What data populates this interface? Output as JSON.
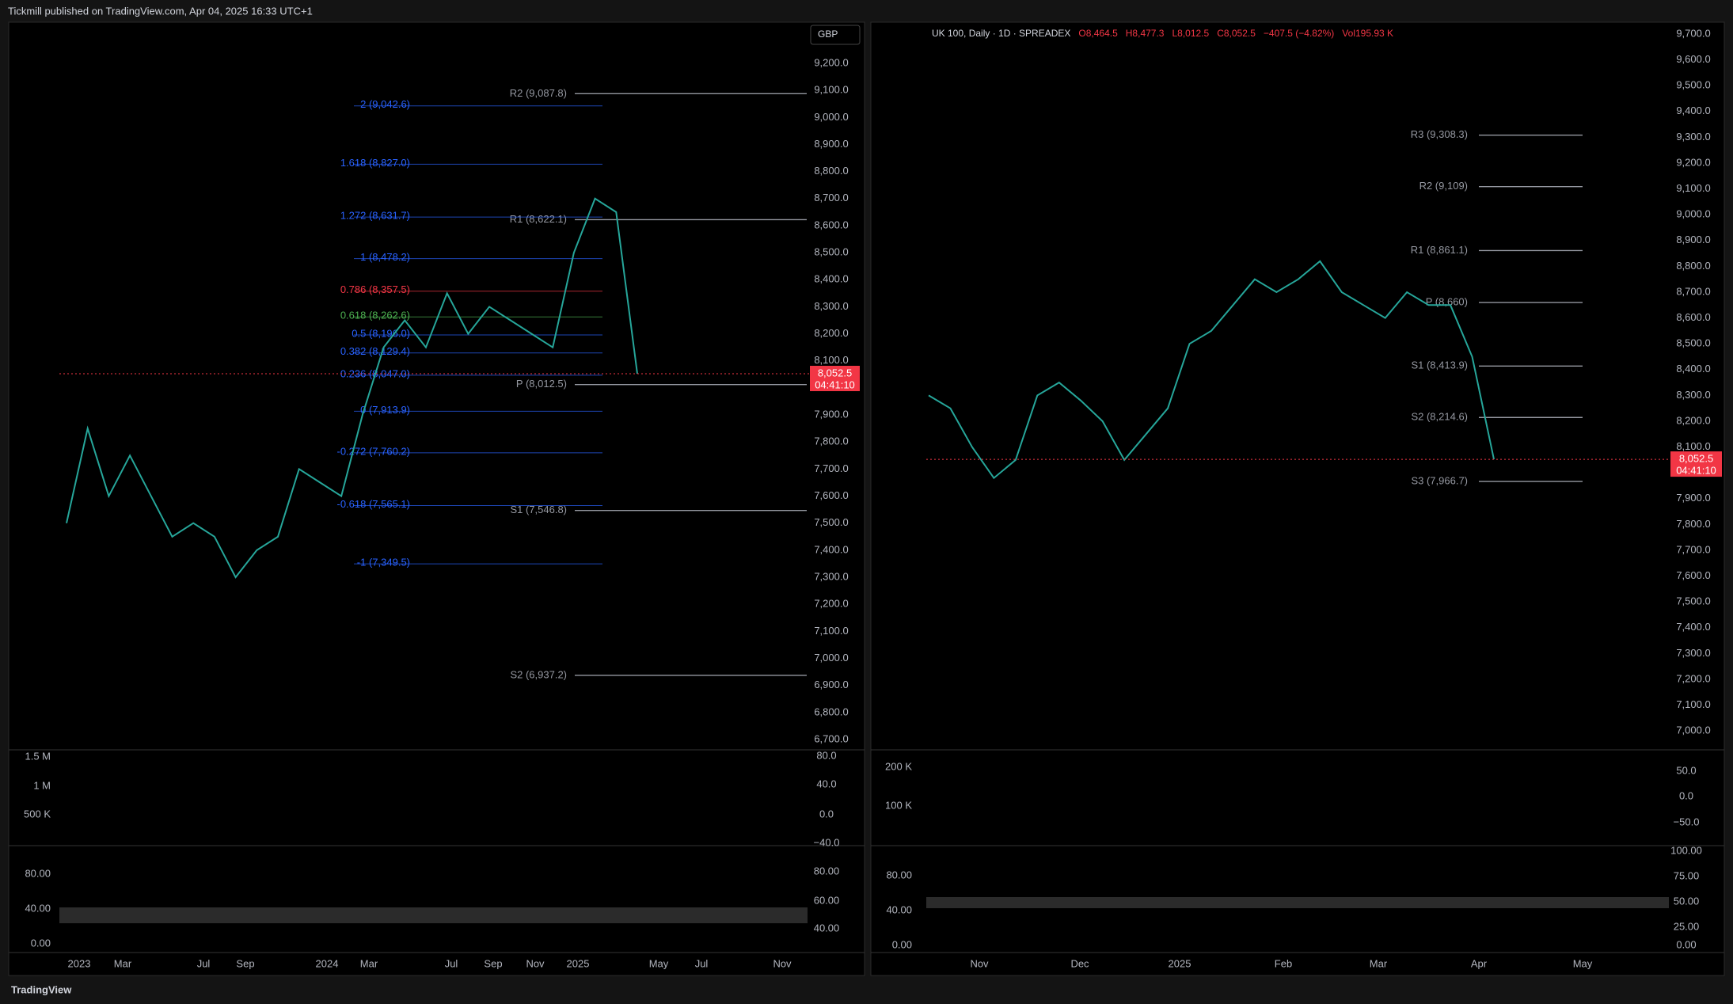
{
  "header": {
    "publisher": "Tickmill published on TradingView.com, Apr 04, 2025 16:33 UTC+1"
  },
  "footer": {
    "brand": "TradingView"
  },
  "left": {
    "currency": "GBP",
    "price_axis": [
      {
        "value": 9200,
        "label": "9,200.0"
      },
      {
        "value": 9100,
        "label": "9,100.0"
      },
      {
        "value": 9000,
        "label": "9,000.0"
      },
      {
        "value": 8900,
        "label": "8,900.0"
      },
      {
        "value": 8800,
        "label": "8,800.0"
      },
      {
        "value": 8700,
        "label": "8,700.0"
      },
      {
        "value": 8600,
        "label": "8,600.0"
      },
      {
        "value": 8500,
        "label": "8,500.0"
      },
      {
        "value": 8400,
        "label": "8,400.0"
      },
      {
        "value": 8300,
        "label": "8,300.0"
      },
      {
        "value": 8200,
        "label": "8,200.0"
      },
      {
        "value": 8100,
        "label": "8,100.0"
      },
      {
        "value": 7900,
        "label": "7,900.0"
      },
      {
        "value": 7800,
        "label": "7,800.0"
      },
      {
        "value": 7700,
        "label": "7,700.0"
      },
      {
        "value": 7600,
        "label": "7,600.0"
      },
      {
        "value": 7500,
        "label": "7,500.0"
      },
      {
        "value": 7400,
        "label": "7,400.0"
      },
      {
        "value": 7300,
        "label": "7,300.0"
      },
      {
        "value": 7200,
        "label": "7,200.0"
      },
      {
        "value": 7100,
        "label": "7,100.0"
      },
      {
        "value": 7000,
        "label": "7,000.0"
      },
      {
        "value": 6900,
        "label": "6,900.0"
      },
      {
        "value": 6800,
        "label": "6,800.0"
      },
      {
        "value": 6700,
        "label": "6,700.0"
      }
    ],
    "pivots": [
      {
        "value": 9087.8,
        "label": "R2 (9,087.8)"
      },
      {
        "value": 8622.1,
        "label": "R1 (8,622.1)"
      },
      {
        "value": 8012.5,
        "label": "P (8,012.5)"
      },
      {
        "value": 7546.8,
        "label": "S1 (7,546.8)"
      },
      {
        "value": 6937.2,
        "label": "S2 (6,937.2)"
      }
    ],
    "fibs": [
      {
        "value": 9042.6,
        "label": "2 (9,042.6)"
      },
      {
        "value": 8827.0,
        "label": "1.618 (8,827.0)"
      },
      {
        "value": 8631.7,
        "label": "1.272 (8,631.7)"
      },
      {
        "value": 8478.2,
        "label": "1 (8,478.2)"
      },
      {
        "value": 8357.5,
        "label": "0.786 (8,357.5)"
      },
      {
        "value": 8262.6,
        "label": "0.618 (8,262.6)"
      },
      {
        "value": 8196.0,
        "label": "0.5 (8,196.0)"
      },
      {
        "value": 8129.4,
        "label": "0.382 (8,129.4)"
      },
      {
        "value": 8047.0,
        "label": "0.236 (8,047.0)"
      },
      {
        "value": 7913.9,
        "label": "0 (7,913.9)"
      },
      {
        "value": 7760.2,
        "label": "-0.272 (7,760.2)"
      },
      {
        "value": 7565.1,
        "label": "-0.618 (7,565.1)"
      },
      {
        "value": 7349.5,
        "label": "-1 (7,349.5)"
      }
    ],
    "price_tag": {
      "value": 8052.5,
      "label": "8,052.5",
      "countdown": "04:41:10"
    },
    "closes": [
      7500,
      7850,
      7600,
      7750,
      7600,
      7450,
      7500,
      7450,
      7300,
      7400,
      7450,
      7700,
      7650,
      7600,
      7900,
      8150,
      8250,
      8150,
      8350,
      8200,
      8300,
      8250,
      8200,
      8150,
      8500,
      8700,
      8650,
      8052.5
    ],
    "time_axis": [
      "2023",
      "Mar",
      "Jul",
      "Sep",
      "2024",
      "Mar",
      "Jul",
      "Sep",
      "Nov",
      "2025",
      "May",
      "Jul",
      "Nov"
    ],
    "volume_axis": [
      "1.5 M",
      "1 M",
      "500 K"
    ],
    "volume_osc_axis": [
      "80.0",
      "40.0",
      "0.0",
      "−40.0"
    ],
    "stoch_axis_left": [
      "80.00",
      "40.00",
      "0.00"
    ],
    "stoch_axis_right": [
      "80.00",
      "60.00",
      "40.00"
    ]
  },
  "right": {
    "legend": {
      "symbol": "UK 100, Daily · 1D · SPREADEX",
      "open": "O8,464.5",
      "high": "H8,477.3",
      "low": "L8,012.5",
      "close": "C8,052.5",
      "change": "−407.5 (−4.82%)",
      "volume": "Vol195.93 K"
    },
    "price_axis": [
      {
        "value": 9700,
        "label": "9,700.0"
      },
      {
        "value": 9600,
        "label": "9,600.0"
      },
      {
        "value": 9500,
        "label": "9,500.0"
      },
      {
        "value": 9400,
        "label": "9,400.0"
      },
      {
        "value": 9300,
        "label": "9,300.0"
      },
      {
        "value": 9200,
        "label": "9,200.0"
      },
      {
        "value": 9100,
        "label": "9,100.0"
      },
      {
        "value": 9000,
        "label": "9,000.0"
      },
      {
        "value": 8900,
        "label": "8,900.0"
      },
      {
        "value": 8800,
        "label": "8,800.0"
      },
      {
        "value": 8700,
        "label": "8,700.0"
      },
      {
        "value": 8600,
        "label": "8,600.0"
      },
      {
        "value": 8500,
        "label": "8,500.0"
      },
      {
        "value": 8400,
        "label": "8,400.0"
      },
      {
        "value": 8300,
        "label": "8,300.0"
      },
      {
        "value": 8200,
        "label": "8,200.0"
      },
      {
        "value": 8100,
        "label": "8,100.0"
      },
      {
        "value": 7900,
        "label": "7,900.0"
      },
      {
        "value": 7800,
        "label": "7,800.0"
      },
      {
        "value": 7700,
        "label": "7,700.0"
      },
      {
        "value": 7600,
        "label": "7,600.0"
      },
      {
        "value": 7500,
        "label": "7,500.0"
      },
      {
        "value": 7400,
        "label": "7,400.0"
      },
      {
        "value": 7300,
        "label": "7,300.0"
      },
      {
        "value": 7200,
        "label": "7,200.0"
      },
      {
        "value": 7100,
        "label": "7,100.0"
      },
      {
        "value": 7000,
        "label": "7,000.0"
      }
    ],
    "pivots": [
      {
        "value": 9308.3,
        "label": "R3 (9,308.3)"
      },
      {
        "value": 9109,
        "label": "R2 (9,109)"
      },
      {
        "value": 8861.1,
        "label": "R1 (8,861.1)"
      },
      {
        "value": 8660,
        "label": "P (8,660)"
      },
      {
        "value": 8413.9,
        "label": "S1 (8,413.9)"
      },
      {
        "value": 8214.6,
        "label": "S2 (8,214.6)"
      },
      {
        "value": 7966.7,
        "label": "S3 (7,966.7)"
      }
    ],
    "price_tag": {
      "value": 8052.5,
      "label": "8,052.5",
      "countdown": "04:41:10"
    },
    "closes": [
      8300,
      8250,
      8100,
      7980,
      8050,
      8300,
      8350,
      8280,
      8200,
      8050,
      8150,
      8250,
      8500,
      8550,
      8650,
      8750,
      8700,
      8750,
      8820,
      8700,
      8650,
      8600,
      8700,
      8650,
      8650,
      8450,
      8052.5
    ],
    "time_axis": [
      "Nov",
      "Dec",
      "2025",
      "Feb",
      "Mar",
      "Apr",
      "May"
    ],
    "volume_axis": [
      "200 K",
      "100 K"
    ],
    "volume_osc_axis": [
      "50.0",
      "0.0",
      "−50.0"
    ],
    "stoch_axis_left": [
      "80.00",
      "40.00",
      "0.00"
    ],
    "stoch_axis_right": [
      "100.00",
      "75.00",
      "50.00",
      "25.00",
      "0.00"
    ]
  }
}
